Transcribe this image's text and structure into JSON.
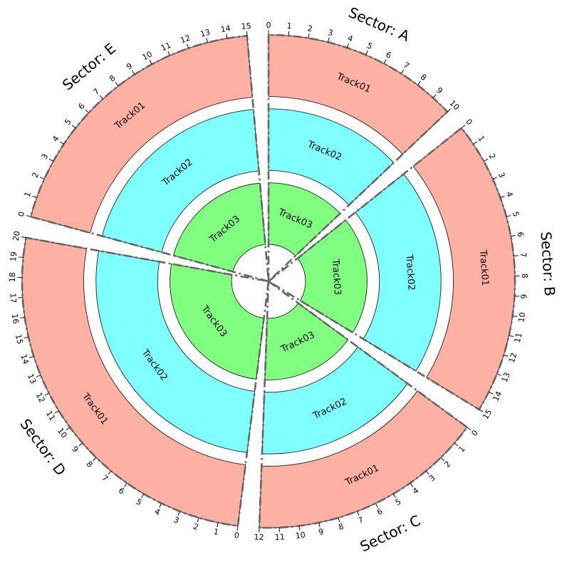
{
  "chart_data": {
    "type": "circos",
    "description": "Circular sector/track layout plot with 5 sectors (A-E), each containing Track01, Track02, Track03 rings with per-unit axis ticks",
    "space_between_sectors_deg": 5,
    "tick_interval": 1,
    "start_angle_deg": 0,
    "sectors": [
      {
        "name": "A",
        "label": "Sector: A",
        "size": 10,
        "tick_start": 0,
        "tick_end": 10
      },
      {
        "name": "B",
        "label": "Sector: B",
        "size": 15,
        "tick_start": 0,
        "tick_end": 15
      },
      {
        "name": "C",
        "label": "Sector: C",
        "size": 12,
        "tick_start": 0,
        "tick_end": 12
      },
      {
        "name": "D",
        "label": "Sector: D",
        "size": 20,
        "tick_start": 0,
        "tick_end": 20
      },
      {
        "name": "E",
        "label": "Sector: E",
        "size": 15,
        "tick_start": 0,
        "tick_end": 15
      }
    ],
    "tracks": [
      {
        "name": "Track01",
        "r_inner": 75,
        "r_outer": 100,
        "fill": "#FFB1A3"
      },
      {
        "name": "Track02",
        "r_inner": 45,
        "r_outer": 70,
        "fill": "#80FFFF"
      },
      {
        "name": "Track03",
        "r_inner": 15,
        "r_outer": 40,
        "fill": "#80FF80"
      }
    ],
    "colors": {
      "background": "#ffffff",
      "track_edge": "#1f1f1f",
      "sector_axis": "#646464",
      "tick": "#1f1f1f",
      "text": "#000000"
    }
  }
}
